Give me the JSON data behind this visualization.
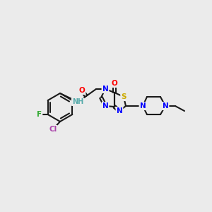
{
  "bg_color": "#ebebeb",
  "bond_color": "#1a1a1a",
  "bond_lw": 1.5,
  "font_size": 7.5,
  "colors": {
    "N": "#0000ff",
    "O": "#ff0000",
    "S": "#ccaa00",
    "F": "#33aa33",
    "Cl": "#aa44aa",
    "NH": "#55aaaa",
    "C": "#1a1a1a"
  }
}
